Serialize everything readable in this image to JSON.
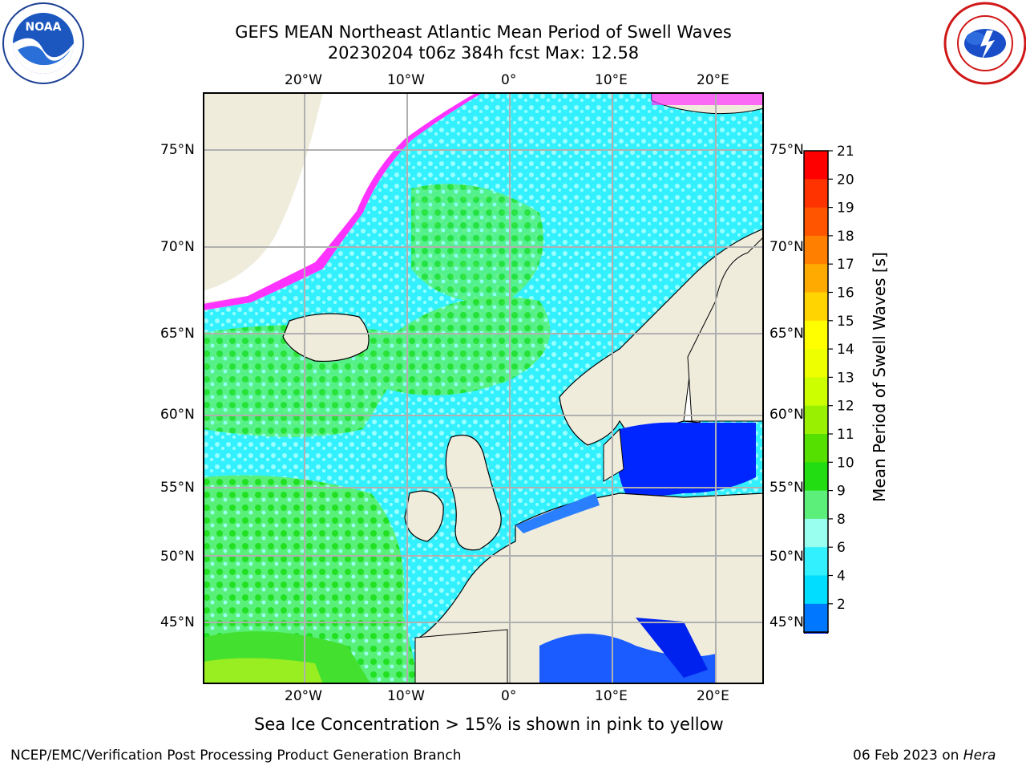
{
  "header": {
    "title_line1": "GEFS MEAN Northeast Atlantic Mean Period of Swell Waves",
    "title_line2": "20230204 t06z 384h fcst   Max: 12.58"
  },
  "logos": {
    "left": "NOAA",
    "right": "NATIONAL WEATHER SERVICE"
  },
  "map": {
    "lon_labels": [
      "20°W",
      "10°W",
      "0°",
      "10°E",
      "20°E"
    ],
    "lat_labels": [
      "75°N",
      "70°N",
      "65°N",
      "60°N",
      "55°N",
      "50°N",
      "45°N"
    ],
    "colors": {
      "land": "#efecdc",
      "ocean_cyan": "#33f0ff",
      "ocean_light": "#99ffff",
      "ocean_green": "#59f07a",
      "ocean_dkgreen": "#22e022",
      "ocean_blue": "#0026ff",
      "ice_pink": "#ff33ff"
    }
  },
  "colorbar": {
    "title": "Mean Period of Swell Waves [s]",
    "ticks": [
      "21",
      "20",
      "19",
      "18",
      "17",
      "16",
      "15",
      "14",
      "13",
      "12",
      "11",
      "10",
      "9",
      "8",
      "6",
      "4",
      "2"
    ],
    "colors": [
      "#ff0000",
      "#ff3300",
      "#ff5500",
      "#ff7f00",
      "#ffaa00",
      "#ffd400",
      "#ffff00",
      "#eeff00",
      "#ccff00",
      "#99f000",
      "#55e000",
      "#22dd11",
      "#5cf07a",
      "#99ffee",
      "#33f0ff",
      "#00ddff",
      "#0077ff",
      "#0022ee"
    ]
  },
  "caption": "Sea Ice Concentration > 15% is shown in pink to yellow",
  "footer": {
    "left": "NCEP/EMC/Verification Post Processing Product Generation Branch",
    "right_date": "06 Feb 2023 on ",
    "right_host": "Hera"
  }
}
